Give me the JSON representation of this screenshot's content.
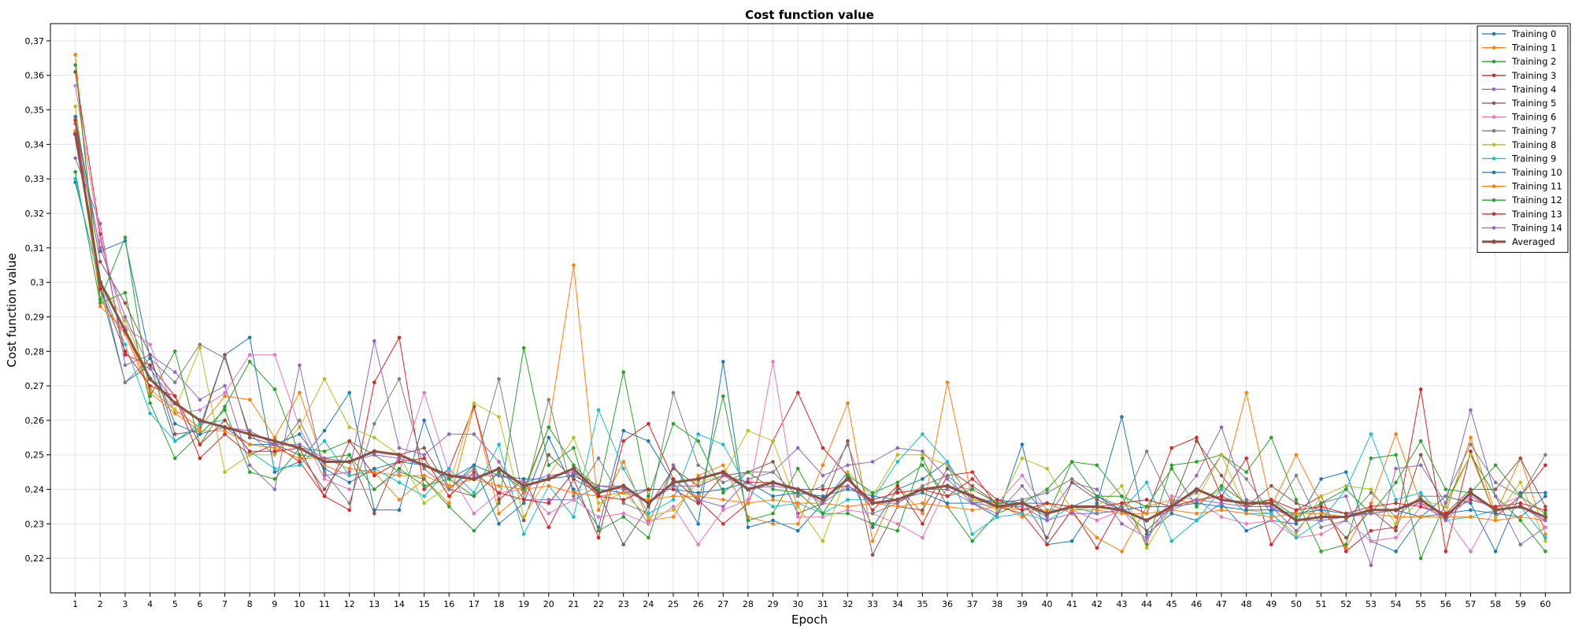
{
  "chart_data": {
    "type": "line",
    "title": "Cost function value",
    "xlabel": "Epoch",
    "ylabel": "Cost function value",
    "xlim": [
      0,
      61
    ],
    "ylim": [
      0.21,
      0.375
    ],
    "yticks": [
      "0,22",
      "0,23",
      "0,24",
      "0,25",
      "0,26",
      "0,27",
      "0,28",
      "0,29",
      "0,3",
      "0,31",
      "0,32",
      "0,33",
      "0,34",
      "0,35",
      "0,36",
      "0,37"
    ],
    "ytick_values": [
      0.22,
      0.23,
      0.24,
      0.25,
      0.26,
      0.27,
      0.28,
      0.29,
      0.3,
      0.31,
      0.32,
      0.33,
      0.34,
      0.35,
      0.36,
      0.37
    ],
    "grid": true,
    "legend_position": "top-right",
    "x": [
      1,
      2,
      3,
      4,
      5,
      6,
      7,
      8,
      9,
      10,
      11,
      12,
      13,
      14,
      15,
      16,
      17,
      18,
      19,
      20,
      21,
      22,
      23,
      24,
      25,
      26,
      27,
      28,
      29,
      30,
      31,
      32,
      33,
      34,
      35,
      36,
      37,
      38,
      39,
      40,
      41,
      42,
      43,
      44,
      45,
      46,
      47,
      48,
      49,
      50,
      51,
      52,
      53,
      54,
      55,
      56,
      57,
      58,
      59,
      60
    ],
    "series": [
      {
        "name": "Training 0",
        "color": "#1f77b4",
        "values": [
          0.329,
          0.3,
          0.271,
          0.276,
          0.254,
          0.258,
          0.279,
          0.284,
          0.245,
          0.248,
          0.257,
          0.268,
          0.234,
          0.234,
          0.26,
          0.24,
          0.247,
          0.23,
          0.236,
          0.255,
          0.24,
          0.229,
          0.257,
          0.254,
          0.242,
          0.23,
          0.277,
          0.229,
          0.231,
          0.228,
          0.236,
          0.245,
          0.229,
          0.24,
          0.243,
          0.248,
          0.236,
          0.232,
          0.253,
          0.224,
          0.225,
          0.236,
          0.261,
          0.227,
          0.233,
          0.231,
          0.236,
          0.228,
          0.231,
          0.23,
          0.243,
          0.245,
          0.225,
          0.222,
          0.232,
          0.238,
          0.236,
          0.222,
          0.239,
          0.239
        ]
      },
      {
        "name": "Training 1",
        "color": "#ff7f0e",
        "values": [
          0.366,
          0.293,
          0.286,
          0.269,
          0.263,
          0.258,
          0.267,
          0.266,
          0.255,
          0.268,
          0.247,
          0.244,
          0.245,
          0.237,
          0.243,
          0.236,
          0.264,
          0.233,
          0.239,
          0.258,
          0.305,
          0.234,
          0.248,
          0.231,
          0.232,
          0.244,
          0.247,
          0.232,
          0.23,
          0.23,
          0.247,
          0.265,
          0.225,
          0.241,
          0.233,
          0.271,
          0.237,
          0.236,
          0.232,
          0.236,
          0.233,
          0.226,
          0.222,
          0.235,
          0.237,
          0.236,
          0.24,
          0.268,
          0.235,
          0.25,
          0.236,
          0.223,
          0.236,
          0.256,
          0.236,
          0.233,
          0.255,
          0.233,
          0.249,
          0.227
        ]
      },
      {
        "name": "Training 2",
        "color": "#2ca02c",
        "values": [
          0.332,
          0.294,
          0.297,
          0.265,
          0.249,
          0.256,
          0.263,
          0.245,
          0.243,
          0.252,
          0.251,
          0.254,
          0.25,
          0.245,
          0.243,
          0.235,
          0.228,
          0.236,
          0.281,
          0.247,
          0.252,
          0.228,
          0.232,
          0.226,
          0.247,
          0.236,
          0.267,
          0.231,
          0.233,
          0.246,
          0.233,
          0.233,
          0.23,
          0.228,
          0.249,
          0.235,
          0.225,
          0.233,
          0.236,
          0.232,
          0.248,
          0.247,
          0.238,
          0.224,
          0.247,
          0.248,
          0.25,
          0.245,
          0.255,
          0.237,
          0.222,
          0.224,
          0.249,
          0.25,
          0.22,
          0.236,
          0.25,
          0.238,
          0.231,
          0.222
        ]
      },
      {
        "name": "Training 3",
        "color": "#d62728",
        "values": [
          0.361,
          0.314,
          0.279,
          0.276,
          0.267,
          0.249,
          0.256,
          0.25,
          0.253,
          0.248,
          0.238,
          0.234,
          0.271,
          0.284,
          0.24,
          0.246,
          0.264,
          0.237,
          0.243,
          0.229,
          0.243,
          0.226,
          0.254,
          0.259,
          0.243,
          0.237,
          0.23,
          0.236,
          0.254,
          0.268,
          0.252,
          0.244,
          0.234,
          0.241,
          0.23,
          0.244,
          0.245,
          0.235,
          0.233,
          0.224,
          0.234,
          0.223,
          0.236,
          0.233,
          0.252,
          0.255,
          0.238,
          0.249,
          0.224,
          0.234,
          0.238,
          0.222,
          0.228,
          0.229,
          0.269,
          0.222,
          0.251,
          0.232,
          0.238,
          0.247
        ]
      },
      {
        "name": "Training 4",
        "color": "#9467bd",
        "values": [
          0.336,
          0.317,
          0.276,
          0.279,
          0.274,
          0.266,
          0.27,
          0.247,
          0.24,
          0.276,
          0.244,
          0.245,
          0.283,
          0.252,
          0.25,
          0.256,
          0.256,
          0.248,
          0.237,
          0.237,
          0.237,
          0.241,
          0.241,
          0.23,
          0.247,
          0.237,
          0.235,
          0.243,
          0.245,
          0.252,
          0.244,
          0.247,
          0.248,
          0.252,
          0.251,
          0.243,
          0.236,
          0.233,
          0.241,
          0.232,
          0.242,
          0.24,
          0.23,
          0.226,
          0.235,
          0.244,
          0.258,
          0.237,
          0.235,
          0.228,
          0.236,
          0.238,
          0.218,
          0.246,
          0.247,
          0.236,
          0.263,
          0.238,
          0.224,
          0.229
        ]
      },
      {
        "name": "Training 5",
        "color": "#8c564b",
        "values": [
          0.347,
          0.306,
          0.294,
          0.279,
          0.256,
          0.257,
          0.279,
          0.255,
          0.253,
          0.25,
          0.24,
          0.25,
          0.233,
          0.25,
          0.252,
          0.24,
          0.238,
          0.245,
          0.231,
          0.25,
          0.243,
          0.239,
          0.224,
          0.235,
          0.246,
          0.241,
          0.244,
          0.245,
          0.248,
          0.233,
          0.236,
          0.254,
          0.221,
          0.235,
          0.234,
          0.246,
          0.241,
          0.236,
          0.237,
          0.226,
          0.242,
          0.237,
          0.234,
          0.228,
          0.235,
          0.254,
          0.244,
          0.235,
          0.241,
          0.236,
          0.234,
          0.226,
          0.234,
          0.228,
          0.25,
          0.233,
          0.24,
          0.24,
          0.249,
          0.235
        ]
      },
      {
        "name": "Training 6",
        "color": "#e377c2",
        "values": [
          0.357,
          0.312,
          0.287,
          0.282,
          0.262,
          0.263,
          0.268,
          0.279,
          0.279,
          0.258,
          0.243,
          0.24,
          0.24,
          0.245,
          0.268,
          0.245,
          0.233,
          0.239,
          0.24,
          0.233,
          0.237,
          0.232,
          0.233,
          0.23,
          0.235,
          0.224,
          0.234,
          0.237,
          0.277,
          0.232,
          0.232,
          0.234,
          0.233,
          0.23,
          0.226,
          0.241,
          0.24,
          0.236,
          0.244,
          0.234,
          0.234,
          0.231,
          0.234,
          0.225,
          0.238,
          0.237,
          0.232,
          0.23,
          0.231,
          0.226,
          0.227,
          0.231,
          0.225,
          0.226,
          0.235,
          0.232,
          0.222,
          0.235,
          0.238,
          0.229
        ]
      },
      {
        "name": "Training 7",
        "color": "#7f7f7f",
        "values": [
          0.346,
          0.298,
          0.271,
          0.278,
          0.271,
          0.282,
          0.278,
          0.256,
          0.25,
          0.26,
          0.245,
          0.236,
          0.259,
          0.272,
          0.246,
          0.24,
          0.246,
          0.272,
          0.237,
          0.266,
          0.238,
          0.249,
          0.236,
          0.233,
          0.268,
          0.247,
          0.242,
          0.245,
          0.245,
          0.238,
          0.241,
          0.253,
          0.233,
          0.236,
          0.241,
          0.244,
          0.238,
          0.236,
          0.237,
          0.239,
          0.243,
          0.238,
          0.235,
          0.251,
          0.236,
          0.239,
          0.25,
          0.243,
          0.233,
          0.244,
          0.229,
          0.231,
          0.239,
          0.232,
          0.238,
          0.238,
          0.253,
          0.242,
          0.238,
          0.25
        ]
      },
      {
        "name": "Training 8",
        "color": "#bcbd22",
        "values": [
          0.351,
          0.3,
          0.289,
          0.272,
          0.263,
          0.281,
          0.245,
          0.25,
          0.25,
          0.258,
          0.272,
          0.258,
          0.255,
          0.25,
          0.236,
          0.241,
          0.265,
          0.261,
          0.232,
          0.244,
          0.255,
          0.236,
          0.239,
          0.232,
          0.234,
          0.242,
          0.244,
          0.257,
          0.254,
          0.235,
          0.225,
          0.245,
          0.238,
          0.25,
          0.25,
          0.247,
          0.237,
          0.234,
          0.249,
          0.246,
          0.234,
          0.235,
          0.241,
          0.223,
          0.235,
          0.237,
          0.25,
          0.234,
          0.233,
          0.227,
          0.238,
          0.241,
          0.24,
          0.23,
          0.237,
          0.235,
          0.25,
          0.232,
          0.242,
          0.225
        ]
      },
      {
        "name": "Training 9",
        "color": "#17becf",
        "values": [
          0.33,
          0.299,
          0.282,
          0.262,
          0.254,
          0.259,
          0.26,
          0.251,
          0.246,
          0.247,
          0.254,
          0.244,
          0.246,
          0.242,
          0.238,
          0.246,
          0.239,
          0.253,
          0.227,
          0.241,
          0.232,
          0.263,
          0.246,
          0.233,
          0.237,
          0.256,
          0.253,
          0.24,
          0.235,
          0.236,
          0.233,
          0.237,
          0.237,
          0.248,
          0.256,
          0.248,
          0.227,
          0.232,
          0.233,
          0.231,
          0.235,
          0.233,
          0.234,
          0.242,
          0.225,
          0.231,
          0.24,
          0.233,
          0.233,
          0.226,
          0.231,
          0.24,
          0.256,
          0.237,
          0.239,
          0.231,
          0.232,
          0.234,
          0.235,
          0.226
        ]
      },
      {
        "name": "Training 10",
        "color": "#1f77b4",
        "values": [
          0.348,
          0.309,
          0.312,
          0.278,
          0.259,
          0.256,
          0.258,
          0.253,
          0.253,
          0.256,
          0.246,
          0.242,
          0.246,
          0.248,
          0.247,
          0.243,
          0.247,
          0.244,
          0.243,
          0.243,
          0.244,
          0.24,
          0.239,
          0.24,
          0.24,
          0.239,
          0.24,
          0.242,
          0.238,
          0.239,
          0.238,
          0.24,
          0.238,
          0.237,
          0.239,
          0.236,
          0.236,
          0.237,
          0.236,
          0.236,
          0.235,
          0.238,
          0.234,
          0.235,
          0.235,
          0.236,
          0.235,
          0.234,
          0.234,
          0.233,
          0.234,
          0.233,
          0.233,
          0.234,
          0.232,
          0.233,
          0.234,
          0.233,
          0.232,
          0.238
        ]
      },
      {
        "name": "Training 11",
        "color": "#ff7f0e",
        "values": [
          0.344,
          0.295,
          0.285,
          0.268,
          0.262,
          0.257,
          0.257,
          0.253,
          0.252,
          0.249,
          0.249,
          0.246,
          0.245,
          0.244,
          0.244,
          0.241,
          0.243,
          0.241,
          0.24,
          0.241,
          0.239,
          0.238,
          0.239,
          0.237,
          0.238,
          0.238,
          0.237,
          0.236,
          0.237,
          0.236,
          0.236,
          0.235,
          0.236,
          0.235,
          0.236,
          0.235,
          0.234,
          0.235,
          0.234,
          0.234,
          0.234,
          0.234,
          0.233,
          0.233,
          0.234,
          0.233,
          0.234,
          0.233,
          0.232,
          0.233,
          0.233,
          0.232,
          0.233,
          0.232,
          0.232,
          0.232,
          0.232,
          0.231,
          0.232,
          0.231
        ]
      },
      {
        "name": "Training 12",
        "color": "#2ca02c",
        "values": [
          0.363,
          0.295,
          0.313,
          0.267,
          0.28,
          0.253,
          0.264,
          0.277,
          0.269,
          0.25,
          0.249,
          0.25,
          0.24,
          0.246,
          0.241,
          0.243,
          0.238,
          0.245,
          0.24,
          0.258,
          0.247,
          0.24,
          0.274,
          0.238,
          0.259,
          0.254,
          0.239,
          0.245,
          0.24,
          0.239,
          0.233,
          0.244,
          0.239,
          0.242,
          0.247,
          0.238,
          0.24,
          0.236,
          0.236,
          0.24,
          0.248,
          0.238,
          0.238,
          0.235,
          0.246,
          0.235,
          0.241,
          0.236,
          0.237,
          0.232,
          0.236,
          0.24,
          0.233,
          0.242,
          0.254,
          0.24,
          0.239,
          0.247,
          0.238,
          0.233
        ]
      },
      {
        "name": "Training 13",
        "color": "#d62728",
        "values": [
          0.347,
          0.298,
          0.28,
          0.27,
          0.267,
          0.253,
          0.26,
          0.251,
          0.251,
          0.252,
          0.238,
          0.254,
          0.244,
          0.248,
          0.249,
          0.238,
          0.245,
          0.239,
          0.237,
          0.236,
          0.245,
          0.238,
          0.237,
          0.24,
          0.24,
          0.236,
          0.244,
          0.242,
          0.242,
          0.24,
          0.24,
          0.241,
          0.237,
          0.239,
          0.24,
          0.238,
          0.243,
          0.237,
          0.234,
          0.236,
          0.235,
          0.235,
          0.236,
          0.237,
          0.235,
          0.237,
          0.238,
          0.235,
          0.237,
          0.234,
          0.235,
          0.233,
          0.235,
          0.236,
          0.235,
          0.233,
          0.237,
          0.235,
          0.236,
          0.234
        ]
      },
      {
        "name": "Training 14",
        "color": "#9467bd",
        "values": [
          0.343,
          0.31,
          0.29,
          0.275,
          0.265,
          0.26,
          0.258,
          0.257,
          0.253,
          0.253,
          0.249,
          0.248,
          0.25,
          0.249,
          0.247,
          0.244,
          0.244,
          0.244,
          0.242,
          0.244,
          0.245,
          0.241,
          0.24,
          0.236,
          0.241,
          0.241,
          0.244,
          0.24,
          0.241,
          0.24,
          0.236,
          0.241,
          0.236,
          0.236,
          0.24,
          0.24,
          0.236,
          0.235,
          0.235,
          0.231,
          0.233,
          0.233,
          0.234,
          0.231,
          0.234,
          0.237,
          0.236,
          0.235,
          0.235,
          0.231,
          0.231,
          0.232,
          0.233,
          0.234,
          0.236,
          0.231,
          0.238,
          0.234,
          0.235,
          0.231
        ]
      },
      {
        "name": "Averaged",
        "color": "#8b5145",
        "values": [
          0.343,
          0.3,
          0.286,
          0.272,
          0.265,
          0.26,
          0.258,
          0.256,
          0.254,
          0.252,
          0.248,
          0.248,
          0.251,
          0.25,
          0.247,
          0.244,
          0.243,
          0.246,
          0.241,
          0.243,
          0.246,
          0.239,
          0.241,
          0.236,
          0.242,
          0.243,
          0.245,
          0.24,
          0.242,
          0.24,
          0.237,
          0.243,
          0.236,
          0.237,
          0.24,
          0.241,
          0.238,
          0.235,
          0.236,
          0.233,
          0.235,
          0.235,
          0.234,
          0.231,
          0.235,
          0.24,
          0.237,
          0.236,
          0.236,
          0.231,
          0.232,
          0.232,
          0.234,
          0.234,
          0.237,
          0.232,
          0.239,
          0.234,
          0.235,
          0.232
        ]
      }
    ]
  }
}
